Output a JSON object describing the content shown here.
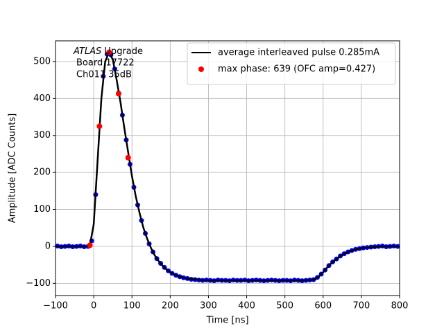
{
  "chart_data": {
    "type": "scatter",
    "xlabel": "Time [ns]",
    "ylabel": "Amplitude [ADC Counts]",
    "annotation": [
      "ATLAS",
      "Upgrade",
      "Board 17722",
      "Ch011 35dB"
    ],
    "xlim": [
      -100,
      800
    ],
    "ylim": [
      -133,
      556
    ],
    "grid": true,
    "legend": "upper right",
    "xticks": [
      {
        "value": -100,
        "label": "−100"
      },
      0,
      100,
      200,
      300,
      400,
      500,
      600,
      700,
      800
    ],
    "yticks": [
      {
        "value": -100,
        "label": "−100"
      },
      0,
      100,
      200,
      300,
      400,
      500
    ],
    "series": [
      {
        "color": "#0000ff",
        "style": "marker",
        "x": [
          -95,
          -85,
          -75,
          -65,
          -55,
          -45,
          -35,
          -25,
          -15,
          -5,
          5,
          15,
          25,
          35,
          45,
          55,
          65,
          75,
          85,
          95,
          105,
          115,
          125,
          135,
          145,
          155,
          165,
          175,
          185,
          195,
          205,
          215,
          225,
          235,
          245,
          255,
          265,
          275,
          285,
          295,
          305,
          315,
          325,
          335,
          345,
          355,
          365,
          375,
          385,
          395,
          405,
          415,
          425,
          435,
          445,
          455,
          465,
          475,
          485,
          495,
          505,
          515,
          525,
          535,
          545,
          555,
          565,
          575,
          585,
          595,
          605,
          615,
          625,
          635,
          645,
          655,
          665,
          675,
          685,
          695,
          705,
          715,
          725,
          735,
          745,
          755,
          765,
          775,
          785,
          795
        ],
        "values": [
          1,
          -1,
          0,
          1,
          -1,
          0,
          1,
          -1,
          0,
          15,
          140,
          325,
          460,
          520,
          518,
          480,
          415,
          355,
          288,
          222,
          160,
          112,
          70,
          35,
          7,
          -15,
          -33,
          -46,
          -57,
          -66,
          -73,
          -78,
          -82,
          -85,
          -87,
          -89,
          -90,
          -91,
          -92,
          -91,
          -92,
          -93,
          -91,
          -92,
          -92,
          -93,
          -91,
          -92,
          -92,
          -91,
          -93,
          -92,
          -91,
          -92,
          -93,
          -92,
          -91,
          -92,
          -93,
          -92,
          -92,
          -93,
          -91,
          -92,
          -93,
          -92,
          -91,
          -90,
          -84,
          -75,
          -64,
          -52,
          -42,
          -34,
          -26,
          -20,
          -15,
          -11,
          -8,
          -6,
          -4,
          -3,
          -2,
          -1,
          0,
          1,
          -1,
          0,
          1,
          0
        ]
      },
      {
        "name": "average interleaved pulse 0.285mA",
        "color": "#000000",
        "style": "line",
        "x": [
          -100,
          -90,
          -80,
          -70,
          -60,
          -50,
          -40,
          -30,
          -20,
          -10,
          0,
          10,
          20,
          30,
          40,
          50,
          60,
          70,
          80,
          90,
          100,
          110,
          120,
          130,
          140,
          150,
          160,
          170,
          180,
          190,
          200,
          210,
          220,
          230,
          240,
          250,
          260,
          270,
          280,
          290,
          300,
          310,
          320,
          330,
          340,
          350,
          360,
          370,
          380,
          390,
          400,
          410,
          420,
          430,
          440,
          450,
          460,
          470,
          480,
          490,
          500,
          510,
          520,
          530,
          540,
          550,
          560,
          570,
          580,
          590,
          600,
          610,
          620,
          630,
          640,
          650,
          660,
          670,
          680,
          690,
          700,
          710,
          720,
          730,
          740,
          750,
          760,
          770,
          780,
          790,
          800
        ],
        "values": [
          0,
          0,
          0,
          0,
          0,
          0,
          0,
          0,
          0,
          3,
          60,
          230,
          400,
          500,
          525,
          505,
          450,
          390,
          320,
          255,
          190,
          135,
          90,
          50,
          20,
          -5,
          -25,
          -40,
          -52,
          -62,
          -70,
          -75,
          -80,
          -83,
          -86,
          -88,
          -89,
          -90,
          -91,
          -91,
          -92,
          -92,
          -92,
          -92,
          -92,
          -92,
          -92,
          -92,
          -92,
          -92,
          -92,
          -92,
          -92,
          -92,
          -92,
          -92,
          -92,
          -92,
          -92,
          -92,
          -92,
          -92,
          -92,
          -92,
          -92,
          -92,
          -91,
          -91,
          -88,
          -80,
          -70,
          -58,
          -47,
          -38,
          -30,
          -23,
          -18,
          -13,
          -10,
          -7,
          -5,
          -4,
          -3,
          -2,
          -1,
          0,
          0,
          0,
          0,
          0,
          0
        ]
      },
      {
        "name": "max phase: 639 (OFC amp=0.427)",
        "color": "#ff0000",
        "style": "marker",
        "x": [
          -10,
          15,
          40,
          65,
          90
        ],
        "values": [
          3,
          325,
          525,
          413,
          240
        ]
      }
    ]
  }
}
